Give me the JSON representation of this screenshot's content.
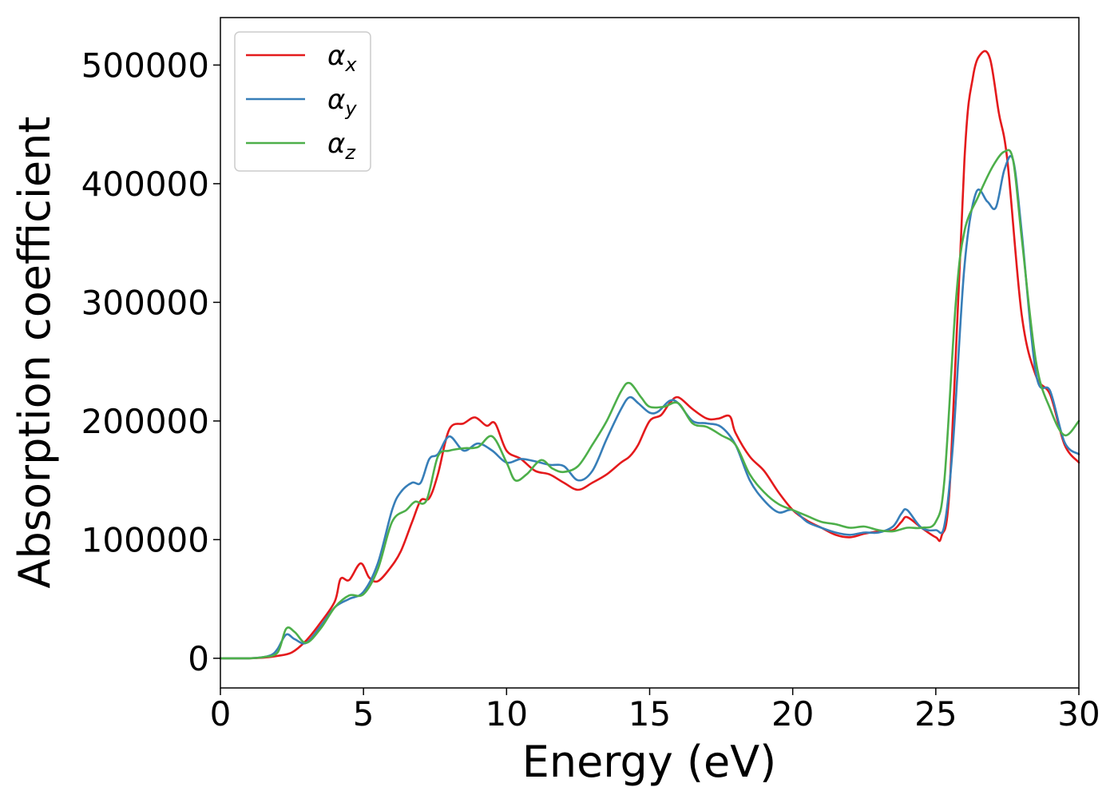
{
  "chart_data": {
    "type": "line",
    "title": "",
    "xlabel": "Energy (eV)",
    "ylabel": "Absorption coefficient",
    "xlim": [
      0,
      30
    ],
    "ylim": [
      -25000,
      540000
    ],
    "xticks": [
      0,
      5,
      10,
      15,
      20,
      25,
      30
    ],
    "xtick_labels": [
      "0",
      "5",
      "10",
      "15",
      "20",
      "25",
      "30"
    ],
    "yticks": [
      0,
      100000,
      200000,
      300000,
      400000,
      500000
    ],
    "ytick_labels": [
      "0",
      "100000",
      "200000",
      "300000",
      "400000",
      "500000"
    ],
    "grid": false,
    "legend_position": "top-left",
    "series": [
      {
        "name": "α",
        "subscript": "x",
        "color": "#e41a1c",
        "x": [
          0,
          1,
          1.5,
          2,
          2.5,
          3,
          3.5,
          4,
          4.2,
          4.5,
          4.9,
          5.2,
          5.5,
          5.9,
          6.3,
          6.7,
          7,
          7.3,
          7.6,
          8,
          8.5,
          8.9,
          9.3,
          9.6,
          10,
          10.5,
          11,
          11.5,
          12,
          12.5,
          13,
          13.5,
          14,
          14.3,
          14.6,
          15,
          15.4,
          15.7,
          16,
          16.5,
          17,
          17.4,
          17.8,
          18,
          18.5,
          19,
          19.5,
          20,
          20.5,
          21,
          21.5,
          22,
          22.5,
          23,
          23.5,
          23.8,
          24,
          24.5,
          25,
          25.2,
          25.5,
          26,
          26.3,
          26.6,
          26.9,
          27.2,
          27.5,
          28,
          28.5,
          29,
          29.5,
          30
        ],
        "y": [
          0,
          0,
          500,
          2000,
          5000,
          15000,
          30000,
          48000,
          67000,
          66000,
          80000,
          68000,
          65000,
          75000,
          90000,
          115000,
          133000,
          135000,
          155000,
          193000,
          198000,
          203000,
          196000,
          198000,
          175000,
          168000,
          158000,
          155000,
          148000,
          142000,
          148000,
          155000,
          165000,
          170000,
          180000,
          200000,
          205000,
          215000,
          220000,
          210000,
          202000,
          202000,
          204000,
          190000,
          170000,
          158000,
          140000,
          125000,
          116000,
          110000,
          104000,
          102000,
          105000,
          107000,
          108000,
          115000,
          119000,
          110000,
          102000,
          103000,
          150000,
          420000,
          490000,
          510000,
          505000,
          460000,
          420000,
          290000,
          238000,
          222000,
          180000,
          165000
        ]
      },
      {
        "name": "α",
        "subscript": "y",
        "color": "#377eb8",
        "x": [
          0,
          1,
          1.5,
          1.8,
          2,
          2.3,
          2.6,
          3,
          3.5,
          4,
          4.5,
          5,
          5.5,
          6,
          6.3,
          6.7,
          7,
          7.3,
          7.6,
          8,
          8.5,
          9,
          9.5,
          10,
          10.5,
          11,
          11.5,
          12,
          12.5,
          13,
          13.5,
          14,
          14.3,
          14.6,
          15,
          15.3,
          15.7,
          16,
          16.5,
          17,
          17.5,
          18,
          18.5,
          19,
          19.5,
          20,
          20.5,
          21,
          21.5,
          22,
          22.5,
          23,
          23.5,
          23.8,
          24,
          24.5,
          25,
          25.3,
          25.6,
          26,
          26.4,
          26.8,
          27.1,
          27.4,
          27.7,
          28,
          28.5,
          29,
          29.5,
          30
        ],
        "y": [
          0,
          0,
          1000,
          3000,
          8000,
          20000,
          16000,
          13000,
          27000,
          43000,
          50000,
          56000,
          80000,
          125000,
          140000,
          148000,
          148000,
          168000,
          172000,
          187000,
          175000,
          181000,
          175000,
          165000,
          168000,
          166000,
          163000,
          162000,
          150000,
          158000,
          185000,
          210000,
          220000,
          215000,
          207000,
          208000,
          217000,
          215000,
          200000,
          198000,
          195000,
          180000,
          150000,
          133000,
          123000,
          125000,
          115000,
          110000,
          106000,
          104000,
          106000,
          106000,
          111000,
          122000,
          125000,
          110000,
          108000,
          112000,
          180000,
          330000,
          392000,
          385000,
          380000,
          412000,
          420000,
          360000,
          240000,
          225000,
          182000,
          172000
        ]
      },
      {
        "name": "α",
        "subscript": "z",
        "color": "#4daf4a",
        "x": [
          0,
          1,
          1.5,
          2,
          2.3,
          2.6,
          3,
          3.5,
          4,
          4.5,
          5,
          5.5,
          6,
          6.5,
          6.8,
          7.2,
          7.6,
          8,
          8.5,
          9,
          9.5,
          10,
          10.3,
          10.7,
          11.2,
          11.6,
          12,
          12.5,
          13,
          13.5,
          14,
          14.3,
          14.7,
          15,
          15.5,
          16,
          16.5,
          17,
          17.5,
          18,
          18.5,
          19,
          19.5,
          20,
          20.5,
          21,
          21.5,
          22,
          22.5,
          23,
          23.5,
          24,
          24.5,
          25,
          25.3,
          25.7,
          26,
          26.5,
          27,
          27.4,
          27.7,
          28,
          28.5,
          29,
          29.5,
          30
        ],
        "y": [
          0,
          0,
          1000,
          5000,
          25000,
          22000,
          13000,
          25000,
          43000,
          53000,
          54000,
          75000,
          115000,
          125000,
          132000,
          133000,
          170000,
          175000,
          177000,
          178000,
          187000,
          165000,
          150000,
          155000,
          167000,
          160000,
          157000,
          162000,
          180000,
          200000,
          225000,
          232000,
          220000,
          212000,
          212000,
          215000,
          198000,
          195000,
          188000,
          180000,
          155000,
          140000,
          130000,
          125000,
          120000,
          115000,
          113000,
          110000,
          111000,
          108000,
          107000,
          110000,
          110000,
          115000,
          150000,
          300000,
          360000,
          390000,
          415000,
          427000,
          420000,
          355000,
          250000,
          210000,
          188000,
          200000
        ]
      }
    ]
  }
}
